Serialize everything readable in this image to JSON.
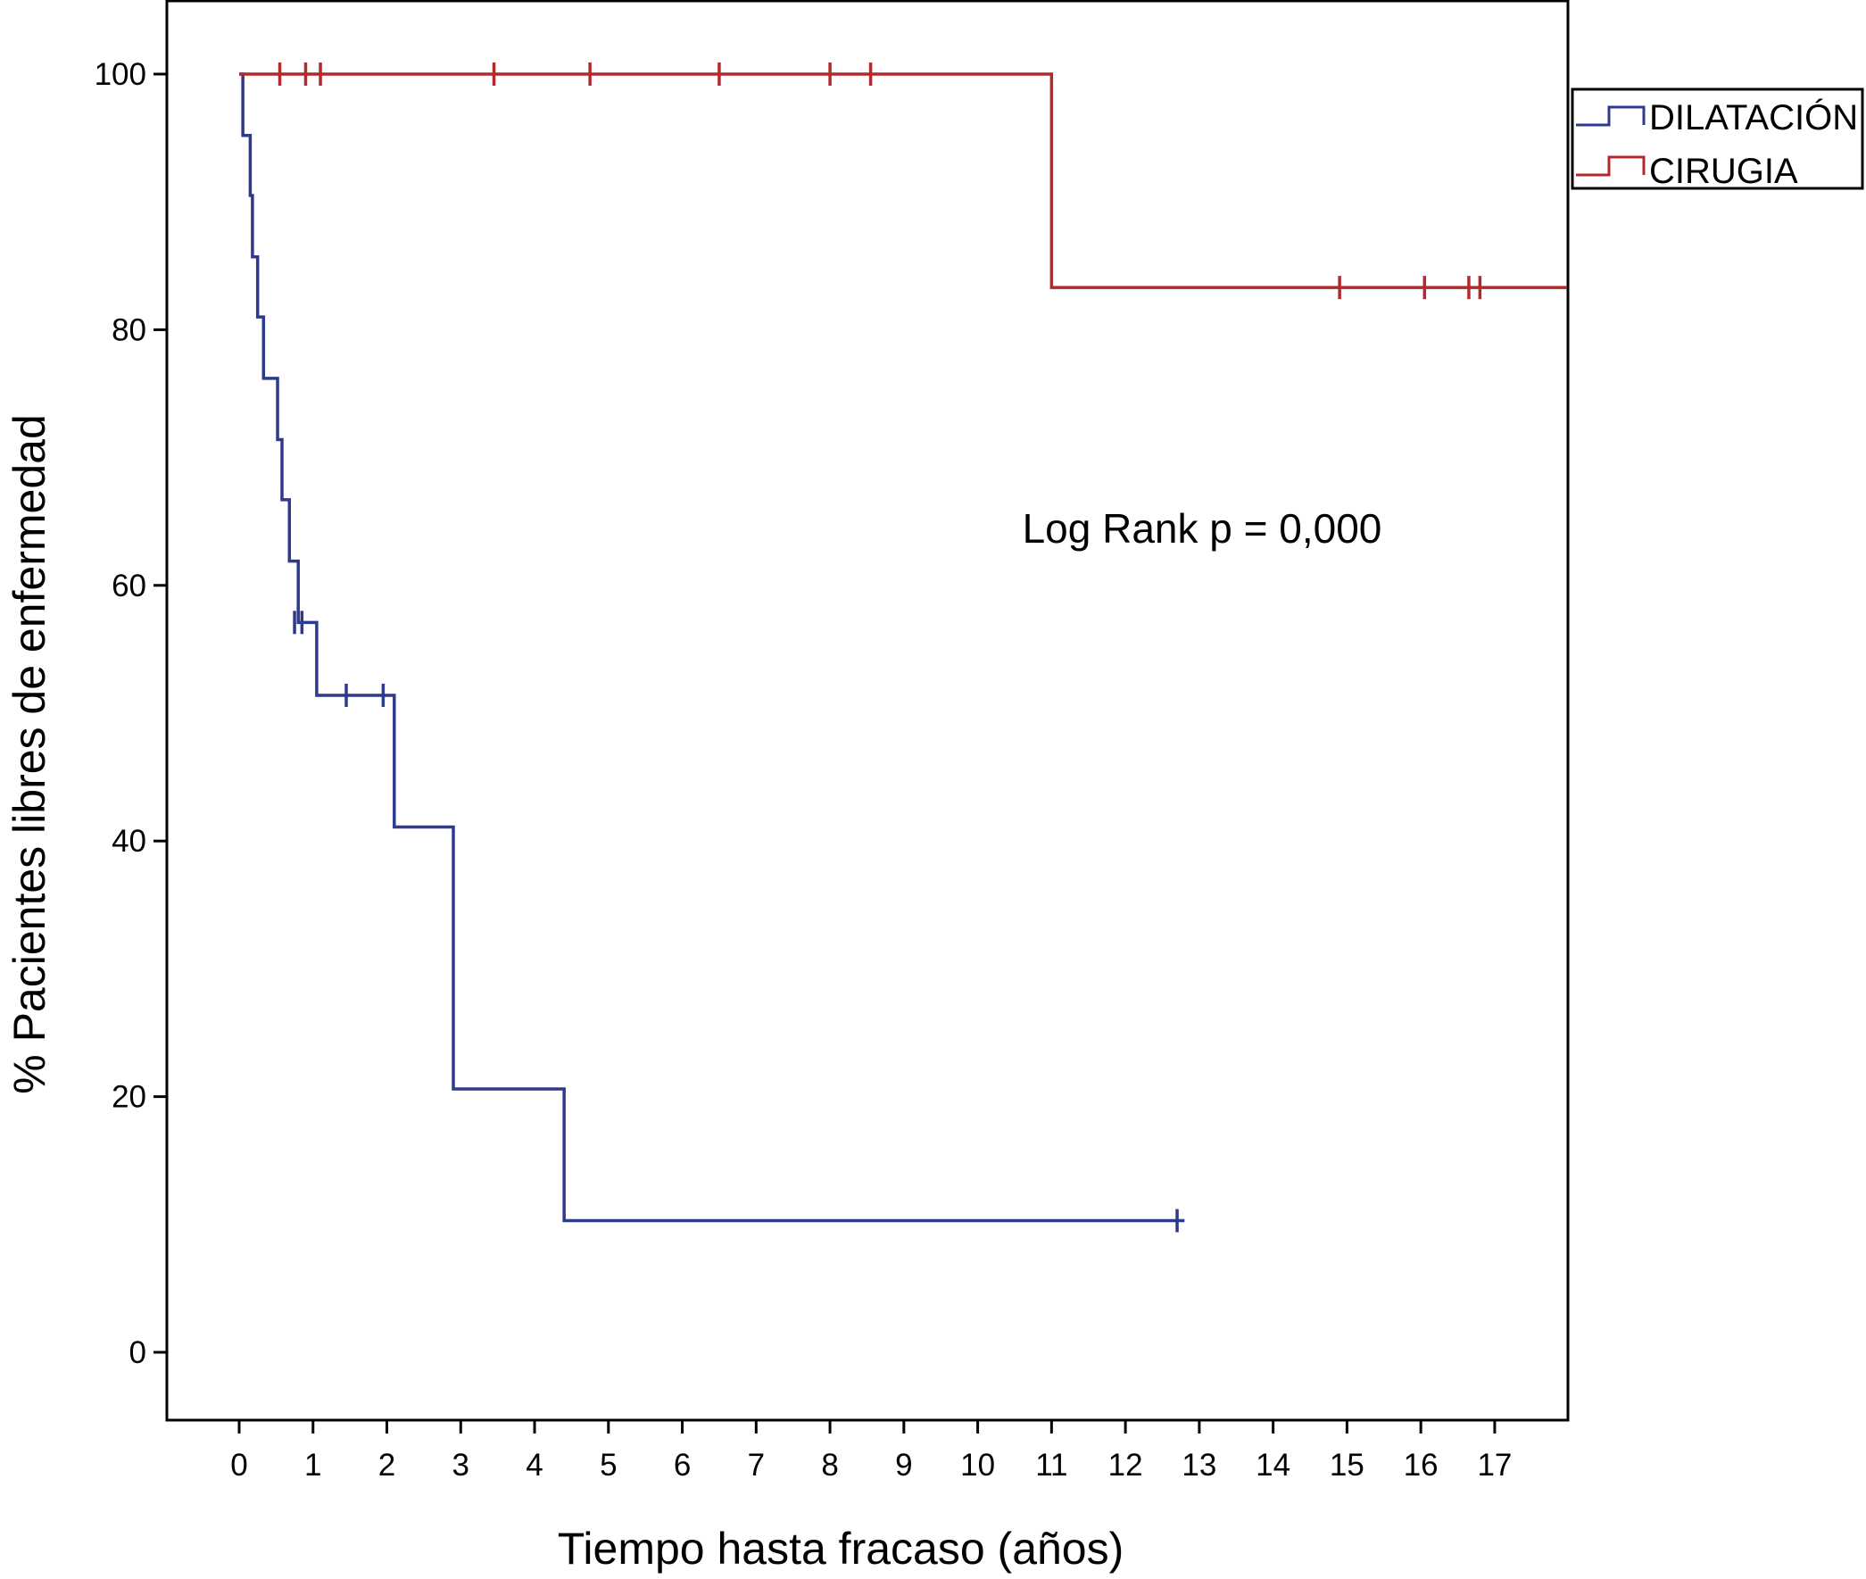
{
  "chart_data": {
    "type": "line",
    "subtype": "kaplan-meier",
    "xlabel": "Tiempo hasta fracaso (años)",
    "ylabel": "% Pacientes libres de enfermedad",
    "xlim": [
      -1,
      18
    ],
    "ylim": [
      -5,
      105.5
    ],
    "xticks": [
      "0",
      "1",
      "2",
      "3",
      "4",
      "5",
      "6",
      "7",
      "8",
      "9",
      "10",
      "11",
      "12",
      "13",
      "14",
      "15",
      "16",
      "17"
    ],
    "yticks": [
      "0",
      "20",
      "40",
      "60",
      "80",
      "100"
    ],
    "annotation": "Log Rank p = 0,000",
    "legend_position": "right-top-outside",
    "series": [
      {
        "name": "DILATACIÓN",
        "color": "#2e3a8c",
        "steps": [
          [
            0,
            100
          ],
          [
            0.05,
            95.2
          ],
          [
            0.15,
            90.5
          ],
          [
            0.18,
            85.7
          ],
          [
            0.25,
            81.0
          ],
          [
            0.33,
            76.2
          ],
          [
            0.52,
            71.4
          ],
          [
            0.58,
            66.7
          ],
          [
            0.68,
            61.9
          ],
          [
            0.8,
            57.1
          ],
          [
            1.05,
            51.4
          ],
          [
            2.1,
            41.1
          ],
          [
            2.9,
            20.6
          ],
          [
            4.4,
            10.3
          ]
        ],
        "end": 12.8,
        "censored": [
          [
            0.75,
            57.1
          ],
          [
            0.85,
            57.1
          ],
          [
            1.45,
            51.4
          ],
          [
            1.95,
            51.4
          ],
          [
            12.7,
            10.3
          ]
        ]
      },
      {
        "name": "CIRUGIA",
        "color": "#b22a2e",
        "steps": [
          [
            0,
            100
          ],
          [
            11.0,
            83.3
          ]
        ],
        "end": 18,
        "censored": [
          [
            0.55,
            100
          ],
          [
            0.9,
            100
          ],
          [
            1.1,
            100
          ],
          [
            3.45,
            100
          ],
          [
            4.75,
            100
          ],
          [
            6.5,
            100
          ],
          [
            8.0,
            100
          ],
          [
            8.55,
            100
          ],
          [
            14.9,
            83.3
          ],
          [
            16.05,
            83.3
          ],
          [
            16.65,
            83.3
          ],
          [
            16.8,
            83.3
          ]
        ]
      }
    ]
  }
}
